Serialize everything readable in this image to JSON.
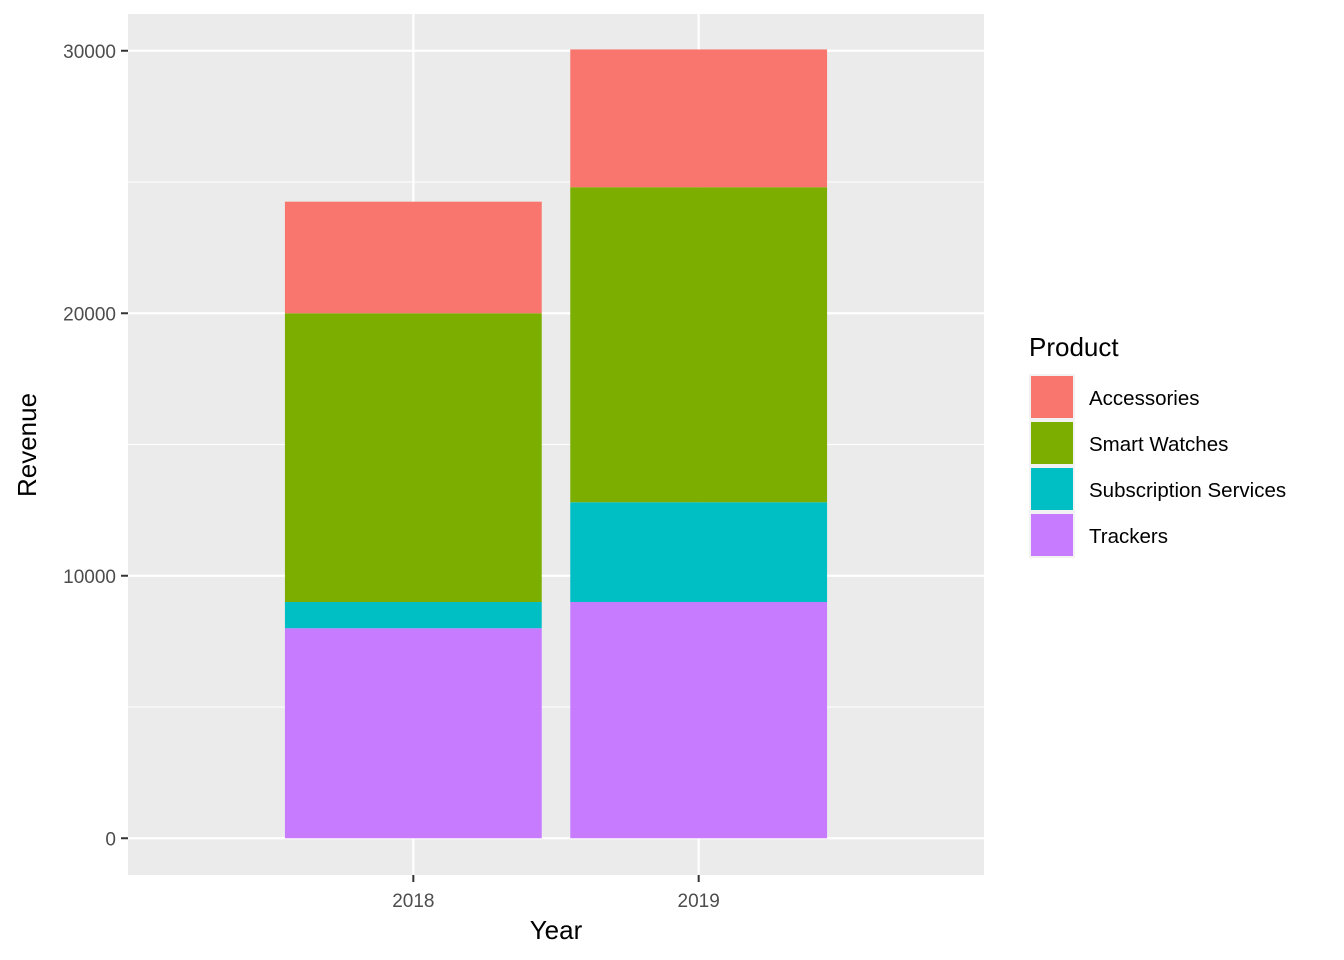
{
  "chart_data": {
    "type": "bar",
    "stacked": true,
    "categories": [
      "2018",
      "2019"
    ],
    "series": [
      {
        "name": "Trackers",
        "values": [
          8000,
          9000
        ]
      },
      {
        "name": "Subscription Services",
        "values": [
          1000,
          3800
        ]
      },
      {
        "name": "Smart Watches",
        "values": [
          11000,
          12000
        ]
      },
      {
        "name": "Accessories",
        "values": [
          4250,
          5250
        ]
      }
    ],
    "legend_order": [
      "Accessories",
      "Smart Watches",
      "Subscription Services",
      "Trackers"
    ],
    "colors": {
      "Accessories": "#F8766D",
      "Smart Watches": "#7CAE00",
      "Subscription Services": "#00BFC4",
      "Trackers": "#C77CFF"
    },
    "panel_background": "#EBEBEB",
    "grid": true,
    "xlabel": "Year",
    "ylabel": "Revenue",
    "ylim": [
      -1400,
      31400
    ],
    "yticks": [
      0,
      10000,
      20000,
      30000
    ],
    "legend_title": "Product",
    "legend_position": "right"
  }
}
